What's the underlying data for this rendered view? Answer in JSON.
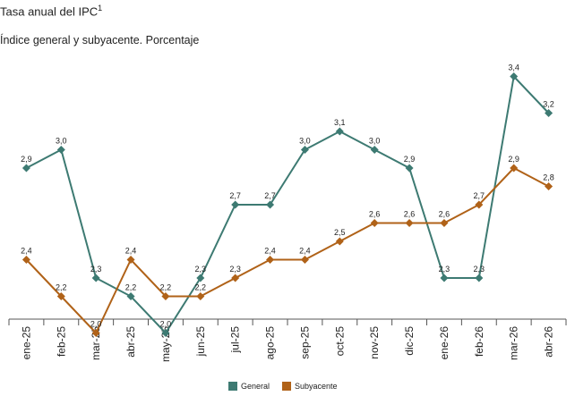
{
  "title": "Tasa anual del IPC",
  "title_sup": "1",
  "subtitle": "Índice general y subyacente. Porcentaje",
  "chart_data": {
    "type": "line",
    "categories": [
      "ene-25",
      "feb-25",
      "mar-25",
      "abr-25",
      "may-25",
      "jun-25",
      "jul-25",
      "ago-25",
      "sep-25",
      "oct-25",
      "nov-25",
      "dic-25",
      "ene-26",
      "feb-26",
      "mar-26",
      "abr-26"
    ],
    "series": [
      {
        "name": "General",
        "color": "#3d7a72",
        "values": [
          2.9,
          3.0,
          2.3,
          2.2,
          2.0,
          2.3,
          2.7,
          2.7,
          3.0,
          3.1,
          3.0,
          2.9,
          2.3,
          2.3,
          3.4,
          3.2
        ],
        "labels": [
          "2,9",
          "3,0",
          "2,3",
          "2,2",
          "2,0",
          "2,3",
          "2,7",
          "2,7",
          "3,0",
          "3,1",
          "3,0",
          "2,9",
          "2,3",
          "2,3",
          "3,4",
          "3,2"
        ]
      },
      {
        "name": "Subyacente",
        "color": "#b06218",
        "values": [
          2.4,
          2.2,
          2.0,
          2.4,
          2.2,
          2.2,
          2.3,
          2.4,
          2.4,
          2.5,
          2.6,
          2.6,
          2.6,
          2.7,
          2.9,
          2.8
        ],
        "labels": [
          "2,4",
          "2,2",
          "2,0",
          "2,4",
          "2,2",
          "2,2",
          "2,3",
          "2,4",
          "2,4",
          "2,5",
          "2,6",
          "2,6",
          "2,6",
          "2,7",
          "2,9",
          "2,8"
        ]
      }
    ],
    "ylim": [
      1.9,
      3.5
    ],
    "grid": false,
    "legend": "bottom-center"
  }
}
